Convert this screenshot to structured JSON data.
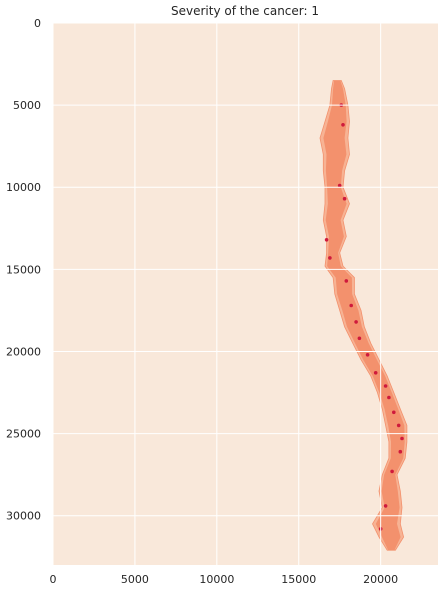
{
  "chart_data": {
    "type": "heatmap",
    "title": "Severity of the cancer: 1",
    "xlabel": "",
    "ylabel": "",
    "xlim": [
      0,
      23500
    ],
    "ylim": [
      33000,
      0
    ],
    "x_ticks": [
      0,
      5000,
      10000,
      15000,
      20000
    ],
    "y_ticks": [
      0,
      5000,
      10000,
      15000,
      20000,
      25000,
      30000
    ],
    "grid": true,
    "legend": "none",
    "colors": {
      "background": "#f9e8da",
      "tissue": "#f3916d",
      "tissue_light": "#f7b394",
      "severe": "#cf1a3c",
      "grid": "#ffffff"
    },
    "tissue_outline": [
      {
        "y": 3500,
        "x0": 17100,
        "x1": 17600
      },
      {
        "y": 4000,
        "x0": 17000,
        "x1": 17800
      },
      {
        "y": 5000,
        "x0": 16900,
        "x1": 18000
      },
      {
        "y": 6000,
        "x0": 16600,
        "x1": 18100
      },
      {
        "y": 7000,
        "x0": 16300,
        "x1": 18000
      },
      {
        "y": 8000,
        "x0": 16500,
        "x1": 18100
      },
      {
        "y": 9000,
        "x0": 16500,
        "x1": 17800
      },
      {
        "y": 10000,
        "x0": 16600,
        "x1": 17700
      },
      {
        "y": 11000,
        "x0": 16600,
        "x1": 18100
      },
      {
        "y": 12000,
        "x0": 16500,
        "x1": 17700
      },
      {
        "y": 13000,
        "x0": 16700,
        "x1": 17900
      },
      {
        "y": 14000,
        "x0": 16700,
        "x1": 17500
      },
      {
        "y": 14800,
        "x0": 16600,
        "x1": 17700
      },
      {
        "y": 15500,
        "x0": 17100,
        "x1": 18400
      },
      {
        "y": 16500,
        "x0": 17200,
        "x1": 18400
      },
      {
        "y": 17500,
        "x0": 17500,
        "x1": 18800
      },
      {
        "y": 18500,
        "x0": 17800,
        "x1": 19000
      },
      {
        "y": 19500,
        "x0": 18300,
        "x1": 19400
      },
      {
        "y": 20500,
        "x0": 18800,
        "x1": 19900
      },
      {
        "y": 21500,
        "x0": 19400,
        "x1": 20400
      },
      {
        "y": 22500,
        "x0": 19800,
        "x1": 20800
      },
      {
        "y": 23500,
        "x0": 20100,
        "x1": 21200
      },
      {
        "y": 24500,
        "x0": 20300,
        "x1": 21600
      },
      {
        "y": 25500,
        "x0": 20500,
        "x1": 21600
      },
      {
        "y": 26500,
        "x0": 20500,
        "x1": 21500
      },
      {
        "y": 27500,
        "x0": 20100,
        "x1": 21000
      },
      {
        "y": 28500,
        "x0": 19900,
        "x1": 21200
      },
      {
        "y": 29500,
        "x0": 20100,
        "x1": 21300
      },
      {
        "y": 30500,
        "x0": 19500,
        "x1": 21200
      },
      {
        "y": 31300,
        "x0": 19900,
        "x1": 21400
      },
      {
        "y": 32100,
        "x0": 20400,
        "x1": 20900
      }
    ],
    "severe_regions": [
      {
        "x": 17600,
        "y": 5000
      },
      {
        "x": 17700,
        "y": 6200
      },
      {
        "x": 17500,
        "y": 9900
      },
      {
        "x": 17800,
        "y": 10700
      },
      {
        "x": 16700,
        "y": 13200
      },
      {
        "x": 16900,
        "y": 14300
      },
      {
        "x": 17900,
        "y": 15700
      },
      {
        "x": 18200,
        "y": 17200
      },
      {
        "x": 18500,
        "y": 18200
      },
      {
        "x": 18700,
        "y": 19200
      },
      {
        "x": 19200,
        "y": 20200
      },
      {
        "x": 19700,
        "y": 21300
      },
      {
        "x": 20300,
        "y": 22100
      },
      {
        "x": 20500,
        "y": 22800
      },
      {
        "x": 20800,
        "y": 23700
      },
      {
        "x": 21100,
        "y": 24500
      },
      {
        "x": 21300,
        "y": 25300
      },
      {
        "x": 21200,
        "y": 26100
      },
      {
        "x": 20700,
        "y": 27300
      },
      {
        "x": 20300,
        "y": 29400
      },
      {
        "x": 20000,
        "y": 30800
      }
    ]
  }
}
